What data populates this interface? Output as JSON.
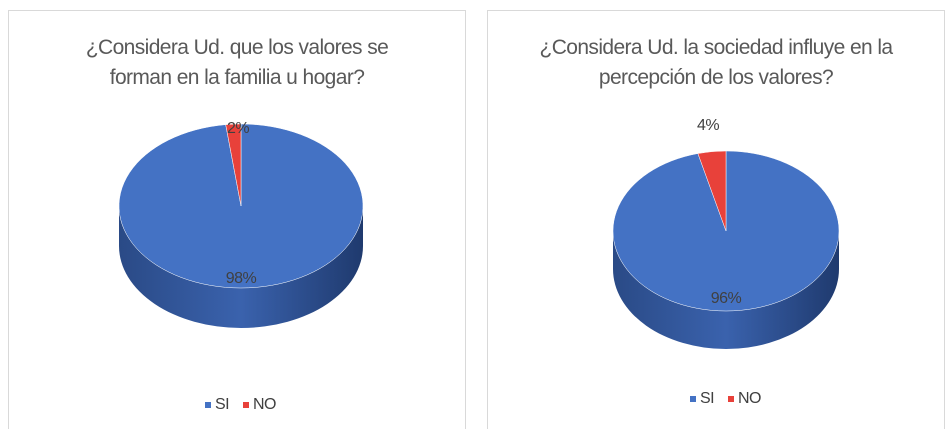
{
  "chart_data": [
    {
      "type": "pie",
      "title": "¿Considera Ud. que los valores se forman en la familia u hogar?",
      "categories": [
        "SI",
        "NO"
      ],
      "values": [
        98,
        2
      ],
      "value_labels": [
        "98%",
        "2%"
      ],
      "colors": [
        "#4472c4",
        "#e8413a"
      ]
    },
    {
      "type": "pie",
      "title": "¿Considera Ud. la sociedad influye en la percepción de los valores?",
      "categories": [
        "SI",
        "NO"
      ],
      "values": [
        96,
        4
      ],
      "value_labels": [
        "96%",
        "4%"
      ],
      "colors": [
        "#4472c4",
        "#e8413a"
      ]
    }
  ]
}
